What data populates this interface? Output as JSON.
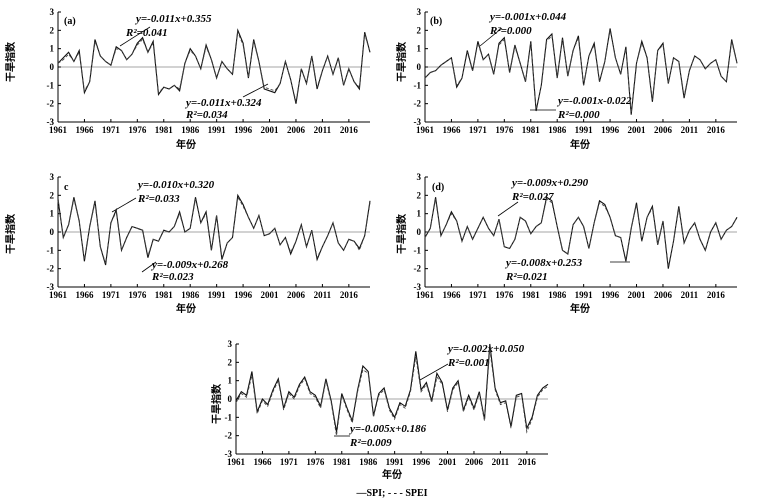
{
  "chart_data": [
    {
      "type": "line",
      "panel_label": "(a)",
      "xlabel": "年份",
      "ylabel": "干旱指数",
      "xlim": [
        1961,
        2020
      ],
      "ylim": [
        -3,
        3
      ],
      "x_ticks": [
        "1961",
        "1966",
        "1971",
        "1976",
        "1981",
        "1986",
        "1991",
        "1996",
        "2001",
        "2006",
        "2011",
        "2016"
      ],
      "y_ticks": [
        "-3",
        "-2",
        "-1",
        "0",
        "1",
        "2",
        "3"
      ],
      "series": [
        {
          "style": "solid",
          "values": [
            0.2,
            0.5,
            0.8,
            0.3,
            0.9,
            -1.4,
            -0.8,
            1.5,
            0.6,
            0.3,
            0.1,
            1.1,
            0.9,
            0.4,
            0.7,
            1.3,
            1.6,
            0.8,
            1.4,
            -1.5,
            -1.1,
            -1.2,
            -1.0,
            -1.3,
            0.2,
            1.0,
            0.6,
            -0.1,
            1.2,
            0.4,
            -0.6,
            0.3,
            -0.1,
            -0.4,
            2.0,
            1.3,
            -0.6,
            1.5,
            0.3,
            -1.2,
            -1.3,
            -1.4,
            -0.9,
            0.3,
            -0.7,
            -2.0,
            -0.1,
            -0.9,
            0.6,
            -1.2,
            -0.2,
            0.6,
            -0.4,
            0.5,
            -1.0,
            -0.1,
            -0.8,
            -1.2,
            1.9,
            0.8
          ]
        },
        {
          "style": "dashed",
          "values": [
            0.2,
            0.4,
            0.7,
            0.3,
            0.8,
            -1.3,
            -0.8,
            1.4,
            0.6,
            0.3,
            0.1,
            1.0,
            0.9,
            0.4,
            0.7,
            1.2,
            1.5,
            0.8,
            1.3,
            -1.4,
            -1.1,
            -1.2,
            -1.0,
            -1.2,
            0.2,
            0.9,
            0.6,
            -0.1,
            1.1,
            0.4,
            -0.6,
            0.3,
            -0.1,
            -0.4,
            1.9,
            1.2,
            -0.6,
            1.4,
            0.3,
            -1.1,
            -1.2,
            -1.3,
            -0.9,
            0.3,
            -0.7,
            -1.9,
            -0.1,
            -0.9,
            0.6,
            -1.1,
            -0.2,
            0.6,
            -0.4,
            0.5,
            -1.0,
            -0.1,
            -0.8,
            -1.1,
            1.8,
            0.8
          ]
        }
      ],
      "annotations": [
        {
          "eq": "y=-0.011x+0.355",
          "r2": "R²=0.041"
        },
        {
          "eq": "y=-0.011x+0.324",
          "r2": "R²=0.034"
        }
      ]
    },
    {
      "type": "line",
      "panel_label": "(b)",
      "xlabel": "年份",
      "ylabel": "干旱指数",
      "xlim": [
        1961,
        2020
      ],
      "ylim": [
        -3,
        3
      ],
      "x_ticks": [
        "1961",
        "1966",
        "1971",
        "1976",
        "1981",
        "1986",
        "1991",
        "1996",
        "2001",
        "2006",
        "2011",
        "2016"
      ],
      "y_ticks": [
        "-3",
        "-2",
        "-1",
        "0",
        "1",
        "2",
        "3"
      ],
      "series": [
        {
          "style": "solid",
          "values": [
            -0.6,
            -0.3,
            -0.2,
            0.1,
            0.3,
            0.5,
            -1.1,
            -0.6,
            0.9,
            -0.2,
            1.4,
            0.4,
            0.7,
            -0.4,
            1.3,
            1.6,
            -0.3,
            1.2,
            0.2,
            -0.8,
            1.4,
            -2.4,
            -1.0,
            1.5,
            1.8,
            -0.6,
            1.6,
            -0.5,
            0.9,
            1.7,
            -1.0,
            0.6,
            1.3,
            -0.8,
            0.3,
            2.1,
            0.5,
            -0.4,
            1.1,
            -2.6,
            0.2,
            1.4,
            0.5,
            -1.9,
            0.9,
            1.3,
            -0.9,
            0.5,
            0.3,
            -1.7,
            -0.2,
            0.6,
            0.4,
            -0.1,
            0.2,
            0.4,
            -0.5,
            -0.8,
            1.5,
            0.2
          ]
        },
        {
          "style": "dashed",
          "values": [
            -0.6,
            -0.3,
            -0.2,
            0.1,
            0.3,
            0.5,
            -1.0,
            -0.6,
            0.8,
            -0.2,
            1.3,
            0.4,
            0.7,
            -0.4,
            1.2,
            1.5,
            -0.3,
            1.1,
            0.2,
            -0.8,
            1.3,
            -2.3,
            -1.0,
            1.4,
            1.7,
            -0.6,
            1.5,
            -0.5,
            0.9,
            1.6,
            -1.0,
            0.6,
            1.2,
            -0.8,
            0.3,
            2.0,
            0.5,
            -0.4,
            1.0,
            -2.5,
            0.2,
            1.3,
            0.5,
            -1.8,
            0.9,
            1.2,
            -0.9,
            0.5,
            0.3,
            -1.6,
            -0.2,
            0.6,
            0.4,
            -0.1,
            0.2,
            0.4,
            -0.5,
            -0.8,
            1.4,
            0.2
          ]
        }
      ],
      "annotations": [
        {
          "eq": "y=-0.001x+0.044",
          "r2": "R²=0.000"
        },
        {
          "eq": "y=-0.001x-0.022",
          "r2": "R²=0.000"
        }
      ]
    },
    {
      "type": "line",
      "panel_label": "c",
      "xlabel": "年份",
      "ylabel": "干旱指数",
      "xlim": [
        1961,
        2020
      ],
      "ylim": [
        -3,
        3
      ],
      "x_ticks": [
        "1961",
        "1966",
        "1971",
        "1976",
        "1981",
        "1986",
        "1991",
        "1996",
        "2001",
        "2006",
        "2011",
        "2016"
      ],
      "y_ticks": [
        "-3",
        "-2",
        "-1",
        "0",
        "1",
        "2",
        "3"
      ],
      "series": [
        {
          "style": "solid",
          "values": [
            1.8,
            -0.3,
            0.4,
            1.9,
            0.6,
            -1.6,
            0.3,
            1.7,
            -0.8,
            -1.8,
            0.5,
            1.2,
            -1.0,
            -0.3,
            0.3,
            0.2,
            0.1,
            -1.4,
            -0.4,
            -0.5,
            0.1,
            0.0,
            0.3,
            1.1,
            0.0,
            0.2,
            1.9,
            0.5,
            1.1,
            -1.0,
            0.9,
            -1.5,
            -0.6,
            -0.3,
            2.0,
            1.5,
            0.8,
            0.2,
            0.9,
            -0.2,
            -0.1,
            0.2,
            -0.7,
            -0.3,
            -1.2,
            -0.5,
            0.4,
            -0.8,
            0.1,
            -1.5,
            -0.8,
            -0.2,
            0.5,
            -0.6,
            -1.0,
            -0.4,
            -0.5,
            -0.9,
            -0.2,
            1.7
          ]
        },
        {
          "style": "dashed",
          "values": [
            1.7,
            -0.3,
            0.4,
            1.8,
            0.6,
            -1.5,
            0.3,
            1.6,
            -0.8,
            -1.7,
            0.5,
            1.1,
            -1.0,
            -0.3,
            0.3,
            0.2,
            0.1,
            -1.3,
            -0.4,
            -0.5,
            0.1,
            0.0,
            0.3,
            1.0,
            0.0,
            0.2,
            1.8,
            0.5,
            1.0,
            -1.0,
            0.9,
            -1.4,
            -0.6,
            -0.3,
            1.9,
            1.4,
            0.8,
            0.2,
            0.9,
            -0.2,
            -0.1,
            0.2,
            -0.7,
            -0.3,
            -1.1,
            -0.5,
            0.4,
            -0.8,
            0.1,
            -1.4,
            -0.8,
            -0.2,
            0.5,
            -0.6,
            -1.0,
            -0.4,
            -0.5,
            -1.0,
            -0.2,
            1.6
          ]
        }
      ],
      "annotations": [
        {
          "eq": "y=-0.010x+0.320",
          "r2": "R²=0.033"
        },
        {
          "eq": "y=-0.009x+0.268",
          "r2": "R²=0.023"
        }
      ]
    },
    {
      "type": "line",
      "panel_label": "(d)",
      "xlabel": "年份",
      "ylabel": "干旱指数",
      "xlim": [
        1961,
        2020
      ],
      "ylim": [
        -3,
        3
      ],
      "x_ticks": [
        "1961",
        "1966",
        "1971",
        "1976",
        "1981",
        "1986",
        "1991",
        "1996",
        "2001",
        "2006",
        "2011",
        "2016"
      ],
      "y_ticks": [
        "-3",
        "-2",
        "-1",
        "0",
        "1",
        "2",
        "3"
      ],
      "series": [
        {
          "style": "solid",
          "values": [
            -0.3,
            0.2,
            1.9,
            -0.2,
            0.4,
            1.1,
            0.6,
            -0.5,
            0.3,
            -0.4,
            0.2,
            0.8,
            0.2,
            -0.2,
            0.7,
            -0.8,
            -0.9,
            -0.4,
            0.8,
            0.6,
            -0.1,
            0.3,
            0.5,
            1.9,
            1.7,
            0.3,
            -1.0,
            -1.2,
            0.4,
            0.8,
            0.3,
            -0.9,
            0.5,
            1.7,
            1.5,
            0.8,
            -0.2,
            -0.3,
            -1.6,
            0.2,
            1.6,
            -0.5,
            0.8,
            1.4,
            -0.7,
            0.6,
            -2.0,
            -0.5,
            1.4,
            -0.6,
            0.1,
            0.5,
            -0.4,
            -1.0,
            0.0,
            0.5,
            -0.4,
            0.1,
            0.3,
            0.8
          ]
        },
        {
          "style": "dashed",
          "values": [
            -0.3,
            0.2,
            1.8,
            -0.2,
            0.4,
            1.0,
            0.6,
            -0.5,
            0.3,
            -0.4,
            0.2,
            0.8,
            0.2,
            -0.2,
            0.7,
            -0.8,
            -0.9,
            -0.4,
            0.8,
            0.6,
            -0.1,
            0.3,
            0.5,
            1.8,
            1.6,
            0.3,
            -1.0,
            -1.2,
            0.4,
            0.8,
            0.3,
            -0.9,
            0.5,
            1.6,
            1.4,
            0.8,
            -0.2,
            -0.3,
            -1.5,
            0.2,
            1.5,
            -0.5,
            0.8,
            1.3,
            -0.7,
            0.6,
            -1.9,
            -0.5,
            1.3,
            -0.6,
            0.1,
            0.5,
            -0.4,
            -1.0,
            0.0,
            0.5,
            -0.4,
            0.1,
            0.3,
            0.8
          ]
        }
      ],
      "annotations": [
        {
          "eq": "y=-0.009x+0.290",
          "r2": "R²=0.027"
        },
        {
          "eq": "y=-0.008x+0.253",
          "r2": "R²=0.021"
        }
      ]
    },
    {
      "type": "line",
      "panel_label": "",
      "xlabel": "年份",
      "ylabel": "干旱指数",
      "xlim": [
        1961,
        2020
      ],
      "ylim": [
        -3,
        3
      ],
      "x_ticks": [
        "1961",
        "1966",
        "1971",
        "1976",
        "1981",
        "1986",
        "1991",
        "1996",
        "2001",
        "2006",
        "2011",
        "2016"
      ],
      "y_ticks": [
        "-3",
        "-2",
        "-1",
        "0",
        "1",
        "2",
        "3"
      ],
      "series": [
        {
          "name": "SPI",
          "style": "solid",
          "values": [
            -0.1,
            0.4,
            0.2,
            1.5,
            -0.7,
            0.0,
            -0.3,
            0.5,
            1.1,
            -0.5,
            0.4,
            0.1,
            0.8,
            1.2,
            0.4,
            0.2,
            -0.4,
            1.1,
            -0.1,
            -1.8,
            0.3,
            -0.5,
            -1.2,
            0.5,
            1.8,
            1.5,
            -0.9,
            0.3,
            0.6,
            -0.5,
            -1.0,
            -0.2,
            -0.4,
            0.5,
            2.6,
            0.5,
            0.9,
            -0.1,
            1.4,
            0.9,
            -0.6,
            0.6,
            1.0,
            -0.6,
            0.2,
            -0.5,
            0.4,
            -1.1,
            3.0,
            0.6,
            -0.2,
            -0.1,
            -1.5,
            0.2,
            0.3,
            -1.6,
            -1.0,
            0.2,
            0.6,
            0.8
          ]
        },
        {
          "name": "SPEI",
          "style": "dashed",
          "values": [
            -0.2,
            0.3,
            0.1,
            1.3,
            -0.8,
            -0.1,
            -0.4,
            0.4,
            1.0,
            -0.6,
            0.3,
            0.0,
            0.7,
            1.1,
            0.3,
            0.1,
            -0.5,
            1.0,
            -0.2,
            -2.0,
            0.2,
            -0.6,
            -1.3,
            0.4,
            1.6,
            1.4,
            -1.0,
            0.2,
            0.5,
            -0.6,
            -1.1,
            -0.3,
            -0.5,
            0.4,
            2.3,
            0.4,
            0.8,
            -0.2,
            1.2,
            0.8,
            -0.7,
            0.5,
            0.9,
            -0.7,
            0.1,
            -0.6,
            0.3,
            -1.2,
            2.7,
            0.5,
            -0.3,
            -0.2,
            -1.6,
            0.1,
            0.2,
            -1.8,
            -1.1,
            0.1,
            0.5,
            0.7
          ]
        }
      ],
      "annotations": [
        {
          "eq": "y=-0.002x+0.050",
          "r2": "R²=0.001"
        },
        {
          "eq": "y=-0.005x+0.186",
          "r2": "R²=0.009"
        }
      ],
      "legend": "—SPI; - - - SPEI"
    }
  ]
}
